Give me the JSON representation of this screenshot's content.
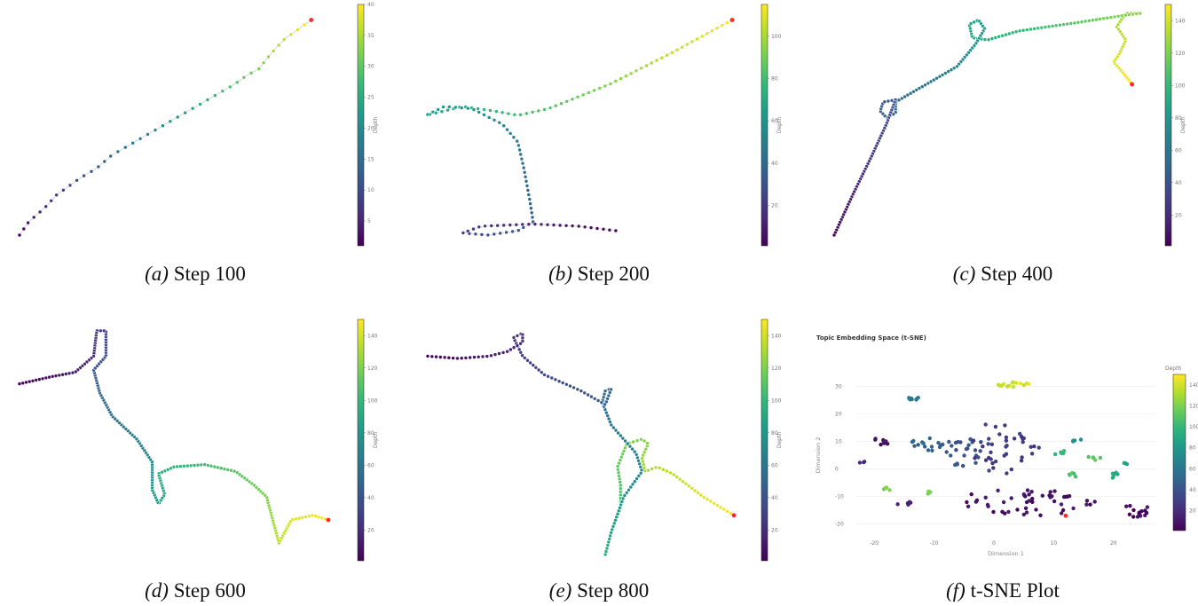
{
  "colormap": [
    "#440154",
    "#482878",
    "#3e4989",
    "#31688e",
    "#26828e",
    "#1f9e89",
    "#35b779",
    "#6ece58",
    "#b5de2b",
    "#fde725"
  ],
  "end_marker_color": "#ff2a1a",
  "captions": [
    {
      "label": "(a)",
      "text": "Step 100"
    },
    {
      "label": "(b)",
      "text": "Step 200"
    },
    {
      "label": "(c)",
      "text": "Step 400"
    },
    {
      "label": "(d)",
      "text": "Step 600"
    },
    {
      "label": "(e)",
      "text": "Step 800"
    },
    {
      "label": "(f)",
      "text": "t-SNE Plot"
    }
  ],
  "colorbars": [
    {
      "label": "Depth",
      "min": 1,
      "max": 40,
      "ticks": [
        5,
        10,
        15,
        20,
        25,
        30,
        35,
        40
      ]
    },
    {
      "label": "Depth",
      "min": 1,
      "max": 115,
      "ticks": [
        20,
        40,
        60,
        80,
        100
      ]
    },
    {
      "label": "Depth",
      "min": 1,
      "max": 150,
      "ticks": [
        20,
        40,
        60,
        80,
        100,
        120,
        140
      ]
    },
    {
      "label": "Depth",
      "min": 1,
      "max": 150,
      "ticks": [
        20,
        40,
        60,
        80,
        100,
        120,
        140
      ]
    },
    {
      "label": "Depth",
      "min": 1,
      "max": 150,
      "ticks": [
        20,
        40,
        60,
        80,
        100,
        120,
        140
      ]
    },
    {
      "label": "Depth",
      "min": 1,
      "max": 150,
      "ticks": [
        20,
        40,
        60,
        80,
        100,
        120,
        140
      ]
    }
  ],
  "chart_data": [
    {
      "type": "scatter",
      "panel": "a",
      "connected": true,
      "depth_max": 40,
      "path": [
        [
          0.95,
          0.97
        ],
        [
          0.9,
          0.92
        ],
        [
          0.86,
          0.88
        ],
        [
          0.82,
          0.82
        ],
        [
          0.78,
          0.75
        ],
        [
          0.74,
          0.72
        ],
        [
          0.7,
          0.68
        ],
        [
          0.6,
          0.6
        ],
        [
          0.5,
          0.52
        ],
        [
          0.4,
          0.44
        ],
        [
          0.3,
          0.36
        ],
        [
          0.25,
          0.3
        ],
        [
          0.2,
          0.26
        ],
        [
          0.12,
          0.18
        ],
        [
          0.08,
          0.12
        ],
        [
          0.03,
          0.06
        ],
        [
          0.0,
          0.0
        ]
      ]
    },
    {
      "type": "scatter",
      "panel": "b",
      "connected": true,
      "depth_max": 115,
      "path": [
        [
          1.0,
          0.97
        ],
        [
          0.8,
          0.82
        ],
        [
          0.6,
          0.68
        ],
        [
          0.4,
          0.57
        ],
        [
          0.3,
          0.54
        ],
        [
          0.22,
          0.56
        ],
        [
          0.12,
          0.58
        ],
        [
          0.03,
          0.55
        ],
        [
          0.0,
          0.54
        ],
        [
          0.06,
          0.58
        ],
        [
          0.15,
          0.57
        ],
        [
          0.25,
          0.5
        ],
        [
          0.3,
          0.42
        ],
        [
          0.32,
          0.3
        ],
        [
          0.34,
          0.15
        ],
        [
          0.35,
          0.06
        ],
        [
          0.3,
          0.02
        ],
        [
          0.2,
          0.0
        ],
        [
          0.12,
          0.01
        ],
        [
          0.18,
          0.04
        ],
        [
          0.35,
          0.05
        ],
        [
          0.5,
          0.04
        ],
        [
          0.62,
          0.02
        ]
      ]
    },
    {
      "type": "scatter",
      "panel": "c",
      "connected": true,
      "depth_max": 150,
      "path": [
        [
          0.97,
          0.68
        ],
        [
          0.93,
          0.75
        ],
        [
          0.91,
          0.78
        ],
        [
          0.93,
          0.82
        ],
        [
          0.95,
          0.88
        ],
        [
          0.92,
          0.94
        ],
        [
          0.95,
          1.0
        ],
        [
          1.0,
          1.0
        ],
        [
          0.94,
          0.99
        ],
        [
          0.8,
          0.96
        ],
        [
          0.6,
          0.92
        ],
        [
          0.5,
          0.88
        ],
        [
          0.45,
          0.89
        ],
        [
          0.44,
          0.95
        ],
        [
          0.47,
          0.97
        ],
        [
          0.49,
          0.93
        ],
        [
          0.46,
          0.86
        ],
        [
          0.4,
          0.76
        ],
        [
          0.3,
          0.68
        ],
        [
          0.2,
          0.6
        ],
        [
          0.2,
          0.55
        ],
        [
          0.17,
          0.53
        ],
        [
          0.15,
          0.56
        ],
        [
          0.16,
          0.6
        ],
        [
          0.2,
          0.61
        ],
        [
          0.17,
          0.5
        ],
        [
          0.12,
          0.35
        ],
        [
          0.06,
          0.18
        ],
        [
          0.0,
          0.0
        ]
      ]
    },
    {
      "type": "scatter",
      "panel": "d",
      "connected": true,
      "depth_max": 150,
      "path": [
        [
          1.0,
          0.15
        ],
        [
          0.95,
          0.17
        ],
        [
          0.88,
          0.15
        ],
        [
          0.84,
          0.05
        ],
        [
          0.82,
          0.15
        ],
        [
          0.8,
          0.25
        ],
        [
          0.76,
          0.3
        ],
        [
          0.7,
          0.36
        ],
        [
          0.6,
          0.39
        ],
        [
          0.5,
          0.38
        ],
        [
          0.45,
          0.35
        ],
        [
          0.47,
          0.26
        ],
        [
          0.45,
          0.22
        ],
        [
          0.43,
          0.28
        ],
        [
          0.43,
          0.4
        ],
        [
          0.38,
          0.5
        ],
        [
          0.3,
          0.6
        ],
        [
          0.26,
          0.7
        ],
        [
          0.24,
          0.8
        ],
        [
          0.28,
          0.86
        ],
        [
          0.28,
          0.97
        ],
        [
          0.25,
          0.97
        ],
        [
          0.24,
          0.86
        ],
        [
          0.18,
          0.79
        ],
        [
          0.1,
          0.77
        ],
        [
          0.0,
          0.74
        ]
      ]
    },
    {
      "type": "scatter",
      "panel": "e",
      "connected": true,
      "depth_max": 150,
      "path": [
        [
          1.0,
          0.17
        ],
        [
          0.9,
          0.25
        ],
        [
          0.8,
          0.35
        ],
        [
          0.75,
          0.38
        ],
        [
          0.71,
          0.36
        ],
        [
          0.7,
          0.42
        ],
        [
          0.72,
          0.48
        ],
        [
          0.7,
          0.5
        ],
        [
          0.65,
          0.48
        ],
        [
          0.62,
          0.38
        ],
        [
          0.63,
          0.3
        ],
        [
          0.63,
          0.2
        ],
        [
          0.6,
          0.1
        ],
        [
          0.58,
          0.0
        ],
        [
          0.6,
          0.1
        ],
        [
          0.64,
          0.25
        ],
        [
          0.7,
          0.36
        ],
        [
          0.68,
          0.44
        ],
        [
          0.6,
          0.56
        ],
        [
          0.57,
          0.66
        ],
        [
          0.58,
          0.71
        ],
        [
          0.6,
          0.72
        ],
        [
          0.58,
          0.65
        ],
        [
          0.5,
          0.71
        ],
        [
          0.38,
          0.78
        ],
        [
          0.31,
          0.86
        ],
        [
          0.28,
          0.94
        ],
        [
          0.31,
          0.96
        ],
        [
          0.31,
          0.92
        ],
        [
          0.26,
          0.88
        ],
        [
          0.2,
          0.86
        ],
        [
          0.1,
          0.85
        ],
        [
          0.0,
          0.86
        ]
      ]
    },
    {
      "type": "scatter",
      "panel": "f",
      "depth_max": 150,
      "title": "Topic Embedding Space (t-SNE)",
      "xlabel": "Dimension 1",
      "ylabel": "Dimension 2",
      "xlim": [
        -23,
        27
      ],
      "ylim": [
        -24,
        34
      ],
      "xticks": [
        -20,
        -10,
        0,
        10,
        20
      ],
      "yticks": [
        -20,
        -10,
        0,
        10,
        20,
        30
      ],
      "clusters": [
        {
          "cx": 3,
          "cy": 30.5,
          "rx": 3,
          "ry": 1.2,
          "n": 14,
          "depth": 140
        },
        {
          "cx": -13.5,
          "cy": 25.5,
          "rx": 1,
          "ry": 0.8,
          "n": 8,
          "depth": 62
        },
        {
          "cx": -18,
          "cy": -7.5,
          "rx": 0.6,
          "ry": 0.8,
          "n": 4,
          "depth": 118
        },
        {
          "cx": -11,
          "cy": -8.5,
          "rx": 0.6,
          "ry": 0.6,
          "n": 3,
          "depth": 118
        },
        {
          "cx": 17,
          "cy": 4,
          "rx": 1.3,
          "ry": 1.5,
          "n": 5,
          "depth": 108
        },
        {
          "cx": 11,
          "cy": 6,
          "rx": 1.5,
          "ry": 0.8,
          "n": 5,
          "depth": 100
        },
        {
          "cx": 13,
          "cy": -2,
          "rx": 1.5,
          "ry": 1,
          "n": 6,
          "depth": 110
        },
        {
          "cx": 20,
          "cy": -2,
          "rx": 0.8,
          "ry": 1.5,
          "n": 6,
          "depth": 92
        },
        {
          "cx": 22,
          "cy": 2,
          "rx": 0.4,
          "ry": 0.6,
          "n": 3,
          "depth": 86
        },
        {
          "cx": 14,
          "cy": 10,
          "rx": 0.8,
          "ry": 1,
          "n": 4,
          "depth": 72
        },
        {
          "cx": -11,
          "cy": 9,
          "rx": 3,
          "ry": 2.5,
          "n": 16,
          "depth": 48
        },
        {
          "cx": -6,
          "cy": 6,
          "rx": 4,
          "ry": 6,
          "n": 22,
          "depth": 40
        },
        {
          "cx": 2,
          "cy": 8,
          "rx": 6,
          "ry": 10,
          "n": 40,
          "depth": 28
        },
        {
          "cx": 5,
          "cy": -12,
          "rx": 12,
          "ry": 5,
          "n": 50,
          "depth": 8
        },
        {
          "cx": 24,
          "cy": -15,
          "rx": 2.5,
          "ry": 2.5,
          "n": 14,
          "depth": 5
        },
        {
          "cx": -15,
          "cy": -13,
          "rx": 1.5,
          "ry": 1.5,
          "n": 5,
          "depth": 14
        },
        {
          "cx": -19,
          "cy": 10,
          "rx": 2,
          "ry": 2,
          "n": 8,
          "depth": 6
        },
        {
          "cx": -22,
          "cy": 2.5,
          "rx": 0.6,
          "ry": 0.5,
          "n": 3,
          "depth": 20
        }
      ],
      "highlight": {
        "x": 12,
        "y": -17,
        "label": "red marker"
      }
    }
  ]
}
